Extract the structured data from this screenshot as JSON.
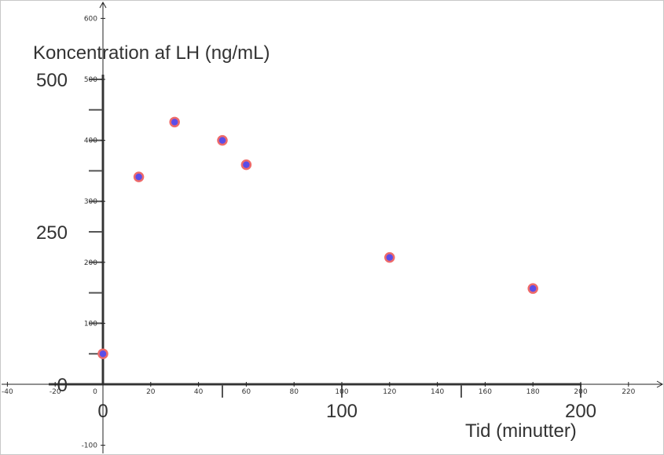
{
  "chart_data": {
    "type": "scatter",
    "title": "",
    "xlabel": "Tid (minutter)",
    "ylabel": "Koncentration af LH (ng/mL)",
    "x": [
      0,
      15,
      30,
      50,
      60,
      120,
      180
    ],
    "y": [
      50,
      340,
      430,
      400,
      360,
      208,
      157
    ],
    "xlim": [
      -40,
      240
    ],
    "ylim": [
      -110,
      620
    ],
    "grid": false,
    "marker_fill": "#5b4de8",
    "marker_edge": "#ee6a6a",
    "image_x_ticks": [
      "-40",
      "-20",
      "0",
      "20",
      "40",
      "60",
      "80",
      "100",
      "120",
      "140",
      "160",
      "180",
      "200",
      "220"
    ],
    "image_y_ticks": [
      "-100",
      "100",
      "200",
      "300",
      "400",
      "500",
      "600"
    ],
    "overlay_x_ticks": [
      "0",
      "100",
      "200"
    ],
    "overlay_y_ticks": [
      "0",
      "250",
      "500"
    ]
  }
}
